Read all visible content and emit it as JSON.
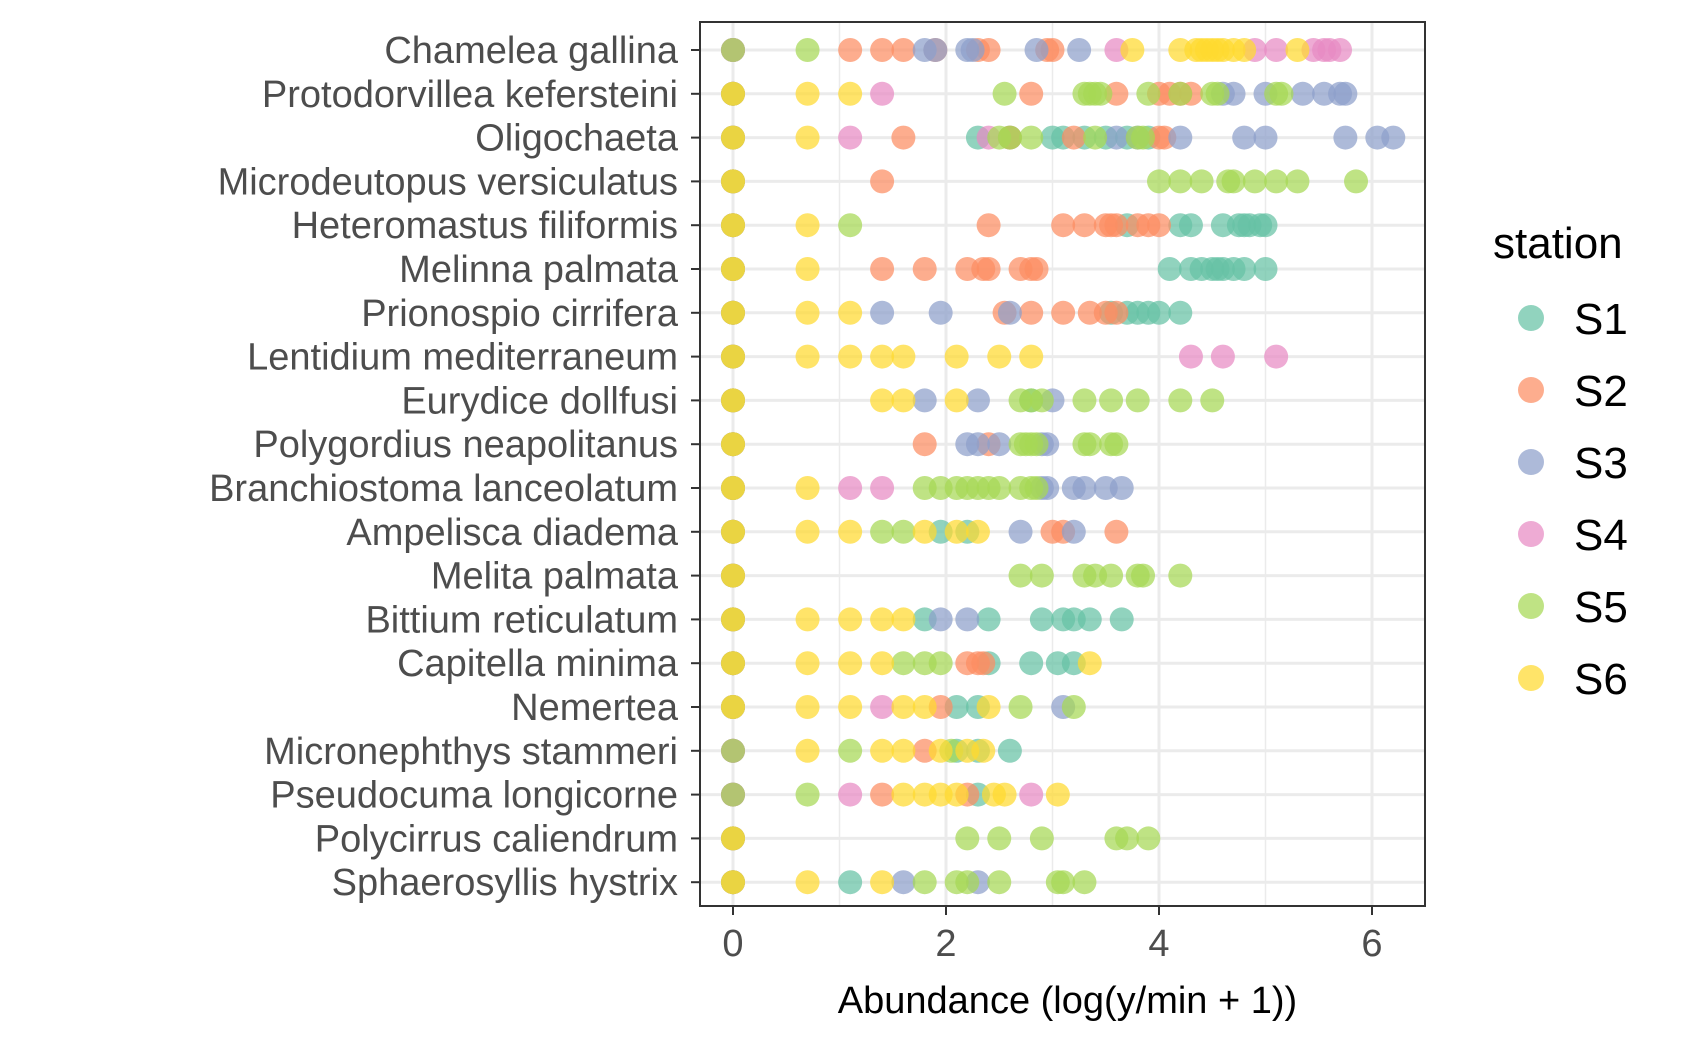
{
  "chart_data": {
    "type": "scatter",
    "title": "",
    "xlabel": "Abundance (log(y/min + 1))",
    "ylabel": "",
    "xlim": [
      -0.3,
      6.5
    ],
    "xticks": [
      0,
      2,
      4,
      6
    ],
    "grid": true,
    "legend": {
      "title": "station",
      "placement": "right"
    },
    "categories": [
      "Chamelea gallina",
      "Protodorvillea kefersteini",
      "Oligochaeta",
      "Microdeutopus versiculatus",
      "Heteromastus filiformis",
      "Melinna palmata",
      "Prionospio cirrifera",
      "Lentidium mediterraneum",
      "Eurydice dollfusi",
      "Polygordius neapolitanus",
      "Branchiostoma lanceolatum",
      "Ampelisca diadema",
      "Melita palmata",
      "Bittium reticulatum",
      "Capitella minima",
      "Nemertea",
      "Micronephthys stammeri",
      "Pseudocuma longicorne",
      "Polycirrus caliendrum",
      "Sphaerosyllis hystrix"
    ],
    "series": [
      {
        "name": "S1",
        "color": "#66c2a5",
        "points": {
          "Chamelea gallina": [
            0
          ],
          "Protodorvillea kefersteini": [
            0
          ],
          "Oligochaeta": [
            0,
            2.3,
            2.6,
            3.0,
            3.1,
            3.3,
            3.5,
            3.7,
            3.9
          ],
          "Microdeutopus versiculatus": [
            0
          ],
          "Heteromastus filiformis": [
            0,
            3.7,
            4.2,
            4.3,
            4.6,
            4.75,
            4.8,
            4.85,
            4.95,
            5.0
          ],
          "Melinna palmata": [
            0,
            4.1,
            4.3,
            4.4,
            4.5,
            4.55,
            4.6,
            4.7,
            4.8,
            5.0
          ],
          "Prionospio cirrifera": [
            0,
            3.55,
            3.7,
            3.8,
            3.9,
            4.0,
            4.2
          ],
          "Lentidium mediterraneum": [
            0
          ],
          "Eurydice dollfusi": [
            0,
            2.8
          ],
          "Polygordius neapolitanus": [
            0
          ],
          "Branchiostoma lanceolatum": [
            0
          ],
          "Ampelisca diadema": [
            0,
            1.95,
            2.2
          ],
          "Melita palmata": [
            0
          ],
          "Bittium reticulatum": [
            0,
            1.8,
            2.4,
            2.9,
            3.1,
            3.2,
            3.35,
            3.65
          ],
          "Capitella minima": [
            0,
            2.4,
            2.8,
            3.05,
            3.2
          ],
          "Nemertea": [
            0,
            2.1,
            2.3
          ],
          "Micronephthys stammeri": [
            0,
            2.1,
            2.3,
            2.6
          ],
          "Pseudocuma longicorne": [
            0,
            2.3
          ],
          "Polycirrus caliendrum": [
            0
          ],
          "Sphaerosyllis hystrix": [
            0,
            1.1
          ]
        }
      },
      {
        "name": "S2",
        "color": "#fc8d62",
        "points": {
          "Chamelea gallina": [
            0,
            1.1,
            1.4,
            1.6,
            1.9,
            2.3,
            2.4,
            2.95,
            3.0
          ],
          "Protodorvillea kefersteini": [
            0,
            2.8,
            3.6,
            4.0,
            4.1,
            4.2,
            4.3
          ],
          "Oligochaeta": [
            0,
            1.6,
            2.6,
            3.2,
            4.0,
            4.05
          ],
          "Microdeutopus versiculatus": [
            0,
            1.4
          ],
          "Heteromastus filiformis": [
            0,
            2.4,
            3.1,
            3.3,
            3.5,
            3.55,
            3.6,
            3.8,
            3.9,
            4.0
          ],
          "Melinna palmata": [
            0,
            1.4,
            1.8,
            2.2,
            2.35,
            2.4,
            2.7,
            2.8,
            2.85
          ],
          "Prionospio cirrifera": [
            0,
            2.55,
            2.8,
            3.1,
            3.35,
            3.5,
            3.6
          ],
          "Lentidium mediterraneum": [
            0
          ],
          "Eurydice dollfusi": [
            0
          ],
          "Polygordius neapolitanus": [
            0,
            1.8,
            2.4
          ],
          "Branchiostoma lanceolatum": [
            0
          ],
          "Ampelisca diadema": [
            0,
            3.0,
            3.1,
            3.6
          ],
          "Melita palmata": [
            0
          ],
          "Bittium reticulatum": [
            0
          ],
          "Capitella minima": [
            0,
            2.2,
            2.3,
            2.35
          ],
          "Nemertea": [
            0,
            1.95
          ],
          "Micronephthys stammeri": [
            0,
            1.8
          ],
          "Pseudocuma longicorne": [
            0,
            1.4,
            2.2
          ],
          "Polycirrus caliendrum": [
            0
          ],
          "Sphaerosyllis hystrix": [
            0
          ]
        }
      },
      {
        "name": "S3",
        "color": "#8da0cb",
        "points": {
          "Chamelea gallina": [
            0,
            1.8,
            1.9,
            2.2,
            2.25,
            2.85,
            3.25
          ],
          "Protodorvillea kefersteini": [
            0,
            4.6,
            4.7,
            5.0,
            5.35,
            5.55,
            5.7,
            5.75
          ],
          "Oligochaeta": [
            0,
            3.6,
            3.8,
            4.2,
            4.8,
            5.0,
            5.75,
            6.05,
            6.2
          ],
          "Microdeutopus versiculatus": [
            0
          ],
          "Heteromastus filiformis": [
            0
          ],
          "Melinna palmata": [
            0
          ],
          "Prionospio cirrifera": [
            0,
            1.4,
            1.95,
            2.6
          ],
          "Lentidium mediterraneum": [
            0
          ],
          "Eurydice dollfusi": [
            0,
            1.8,
            2.3,
            3.0
          ],
          "Polygordius neapolitanus": [
            0,
            2.2,
            2.3,
            2.5,
            2.9,
            2.95
          ],
          "Branchiostoma lanceolatum": [
            0,
            2.9,
            2.95,
            3.2,
            3.3,
            3.5,
            3.65
          ],
          "Ampelisca diadema": [
            0,
            2.7,
            3.2
          ],
          "Melita palmata": [
            0
          ],
          "Bittium reticulatum": [
            0,
            1.95,
            2.2
          ],
          "Capitella minima": [
            0
          ],
          "Nemertea": [
            0,
            3.1
          ],
          "Micronephthys stammeri": [
            0
          ],
          "Pseudocuma longicorne": [
            0
          ],
          "Polycirrus caliendrum": [
            0
          ],
          "Sphaerosyllis hystrix": [
            0,
            1.6,
            2.3
          ]
        }
      },
      {
        "name": "S4",
        "color": "#e78ac3",
        "points": {
          "Chamelea gallina": [
            0,
            3.6,
            4.9,
            5.1,
            5.45,
            5.55,
            5.6,
            5.7
          ],
          "Protodorvillea kefersteini": [
            0,
            1.4
          ],
          "Oligochaeta": [
            0,
            1.1,
            2.4
          ],
          "Microdeutopus versiculatus": [
            0
          ],
          "Heteromastus filiformis": [
            0
          ],
          "Melinna palmata": [
            0
          ],
          "Prionospio cirrifera": [
            0
          ],
          "Lentidium mediterraneum": [
            0,
            4.3,
            4.6,
            5.1
          ],
          "Eurydice dollfusi": [
            0
          ],
          "Polygordius neapolitanus": [
            0
          ],
          "Branchiostoma lanceolatum": [
            0,
            1.1,
            1.4
          ],
          "Ampelisca diadema": [
            0
          ],
          "Melita palmata": [
            0
          ],
          "Bittium reticulatum": [
            0
          ],
          "Capitella minima": [
            0
          ],
          "Nemertea": [
            0,
            1.4
          ],
          "Micronephthys stammeri": [
            0
          ],
          "Pseudocuma longicorne": [
            0,
            1.1,
            2.8
          ],
          "Polycirrus caliendrum": [
            0
          ],
          "Sphaerosyllis hystrix": [
            0
          ]
        }
      },
      {
        "name": "S5",
        "color": "#a6d854",
        "points": {
          "Chamelea gallina": [
            0,
            0.7
          ],
          "Protodorvillea kefersteini": [
            0,
            2.55,
            3.3,
            3.35,
            3.4,
            3.45,
            3.9,
            4.2,
            4.5,
            4.55,
            5.1,
            5.15
          ],
          "Oligochaeta": [
            0,
            2.5,
            2.6,
            2.8,
            3.4,
            3.8,
            3.85
          ],
          "Microdeutopus versiculatus": [
            0,
            4.0,
            4.2,
            4.4,
            4.65,
            4.7,
            4.9,
            5.1,
            5.3,
            5.85
          ],
          "Heteromastus filiformis": [
            0,
            1.1
          ],
          "Melinna palmata": [
            0
          ],
          "Prionospio cirrifera": [
            0
          ],
          "Lentidium mediterraneum": [
            0
          ],
          "Eurydice dollfusi": [
            0,
            2.7,
            2.8,
            2.9,
            3.3,
            3.55,
            3.8,
            4.2,
            4.5
          ],
          "Polygordius neapolitanus": [
            0,
            2.7,
            2.75,
            2.8,
            2.85,
            3.3,
            3.35,
            3.55,
            3.6
          ],
          "Branchiostoma lanceolatum": [
            0,
            1.8,
            1.95,
            2.1,
            2.2,
            2.3,
            2.4,
            2.5,
            2.7,
            2.8,
            2.85
          ],
          "Ampelisca diadema": [
            0,
            1.4,
            1.6
          ],
          "Melita palmata": [
            0,
            2.7,
            2.9,
            3.3,
            3.4,
            3.55,
            3.8,
            3.85,
            4.2
          ],
          "Bittium reticulatum": [
            0
          ],
          "Capitella minima": [
            0,
            1.6,
            1.8,
            1.95
          ],
          "Nemertea": [
            0,
            2.7,
            3.2
          ],
          "Micronephthys stammeri": [
            0,
            1.1,
            2.05
          ],
          "Pseudocuma longicorne": [
            0,
            0.7
          ],
          "Polycirrus caliendrum": [
            0,
            2.2,
            2.5,
            2.9,
            3.6,
            3.7,
            3.9
          ],
          "Sphaerosyllis hystrix": [
            0,
            1.8,
            2.1,
            2.2,
            2.5,
            3.05,
            3.1,
            3.3
          ]
        }
      },
      {
        "name": "S6",
        "color": "#ffd92f",
        "points": {
          "Chamelea gallina": [
            3.75,
            4.2,
            4.35,
            4.4,
            4.45,
            4.5,
            4.55,
            4.6,
            4.7,
            4.8,
            5.3
          ],
          "Protodorvillea kefersteini": [
            0,
            0.7,
            1.1
          ],
          "Oligochaeta": [
            0,
            0.7
          ],
          "Microdeutopus versiculatus": [
            0
          ],
          "Heteromastus filiformis": [
            0,
            0.7
          ],
          "Melinna palmata": [
            0,
            0.7
          ],
          "Prionospio cirrifera": [
            0,
            0.7,
            1.1
          ],
          "Lentidium mediterraneum": [
            0,
            0.7,
            1.1,
            1.4,
            1.6,
            2.1,
            2.5,
            2.8
          ],
          "Eurydice dollfusi": [
            0,
            1.4,
            1.6,
            2.1
          ],
          "Polygordius neapolitanus": [
            0
          ],
          "Branchiostoma lanceolatum": [
            0,
            0.7
          ],
          "Ampelisca diadema": [
            0,
            0.7,
            1.1,
            1.8,
            2.1,
            2.3
          ],
          "Melita palmata": [
            0
          ],
          "Bittium reticulatum": [
            0,
            0.7,
            1.1,
            1.4,
            1.6
          ],
          "Capitella minima": [
            0,
            0.7,
            1.1,
            1.4,
            3.35
          ],
          "Nemertea": [
            0,
            0.7,
            1.1,
            1.6,
            1.8,
            2.4
          ],
          "Micronephthys stammeri": [
            0.7,
            1.4,
            1.6,
            1.95,
            2.2,
            2.35
          ],
          "Pseudocuma longicorne": [
            1.6,
            1.8,
            1.95,
            2.1,
            2.45,
            2.55,
            3.05
          ],
          "Polycirrus caliendrum": [
            0
          ],
          "Sphaerosyllis hystrix": [
            0,
            0.7,
            1.4
          ]
        }
      }
    ]
  }
}
